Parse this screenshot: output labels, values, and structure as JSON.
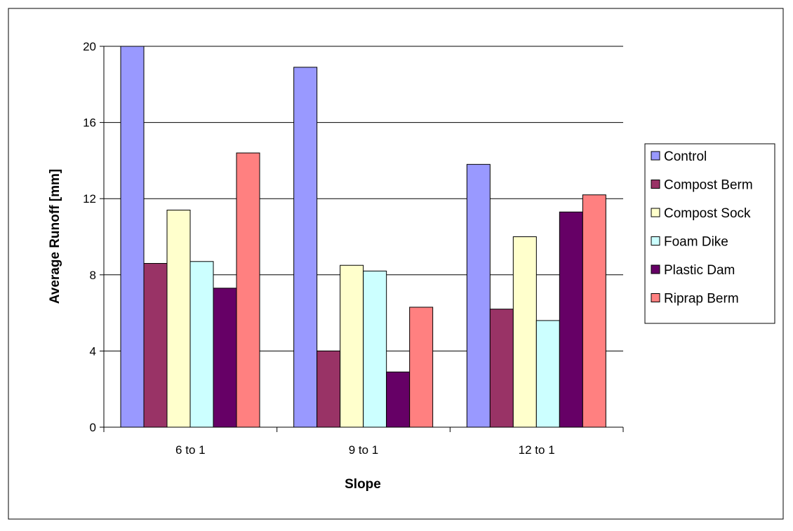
{
  "chart_data": {
    "type": "bar",
    "title": "",
    "xlabel": "Slope",
    "ylabel": "Average Runoff [mm]",
    "categories": [
      "6 to 1",
      "9 to 1",
      "12 to 1"
    ],
    "ylim": [
      0,
      20
    ],
    "yticks": [
      0,
      4,
      8,
      12,
      16,
      20
    ],
    "grid": true,
    "legend_position": "right",
    "series": [
      {
        "name": "Control",
        "color": "#9999FF",
        "values": [
          20.0,
          18.9,
          13.8
        ]
      },
      {
        "name": "Compost Berm",
        "color": "#993366",
        "values": [
          8.6,
          4.0,
          6.2
        ]
      },
      {
        "name": "Compost Sock",
        "color": "#FFFFCC",
        "values": [
          11.4,
          8.5,
          10.0
        ]
      },
      {
        "name": "Foam Dike",
        "color": "#CCFFFF",
        "values": [
          8.7,
          8.2,
          5.6
        ]
      },
      {
        "name": "Plastic Dam",
        "color": "#660066",
        "values": [
          7.3,
          2.9,
          11.3
        ]
      },
      {
        "name": "Riprap Berm",
        "color": "#FF8080",
        "values": [
          14.4,
          6.3,
          12.2
        ]
      }
    ]
  }
}
